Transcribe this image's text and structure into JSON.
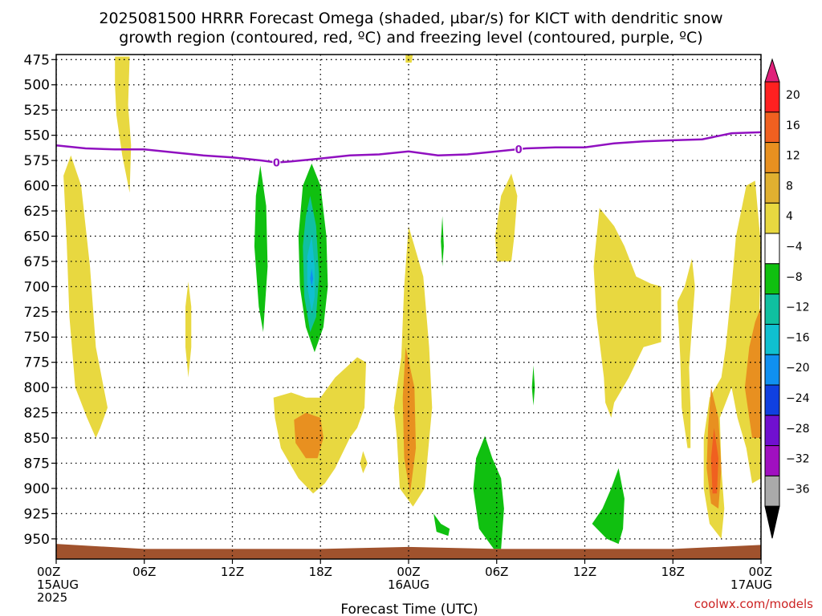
{
  "chart_data": {
    "type": "contour",
    "title": "2025081500 HRRR Forecast Omega (shaded, µbar/s) for KICT with dendritic snow",
    "subtitle": "growth region (contoured, red, ºC) and freezing level (contoured, purple, ºC)",
    "xlabel": "Forecast Time (UTC)",
    "ylabel": "",
    "x_range_hours": [
      0,
      48
    ],
    "y_range_hPa": [
      970,
      470
    ],
    "y_ticks": [
      475,
      500,
      525,
      550,
      575,
      600,
      625,
      650,
      675,
      700,
      725,
      750,
      775,
      800,
      825,
      850,
      875,
      900,
      925,
      950
    ],
    "x_ticks": [
      {
        "hour": 0,
        "line1": "00Z",
        "line2": "15AUG",
        "line3": "2025"
      },
      {
        "hour": 6,
        "line1": "06Z",
        "line2": "",
        "line3": ""
      },
      {
        "hour": 12,
        "line1": "12Z",
        "line2": "",
        "line3": ""
      },
      {
        "hour": 18,
        "line1": "18Z",
        "line2": "",
        "line3": ""
      },
      {
        "hour": 24,
        "line1": "00Z",
        "line2": "16AUG",
        "line3": ""
      },
      {
        "hour": 30,
        "line1": "06Z",
        "line2": "",
        "line3": ""
      },
      {
        "hour": 36,
        "line1": "12Z",
        "line2": "",
        "line3": ""
      },
      {
        "hour": 42,
        "line1": "18Z",
        "line2": "",
        "line3": ""
      },
      {
        "hour": 48,
        "line1": "00Z",
        "line2": "17AUG",
        "line3": ""
      }
    ],
    "grid": true,
    "colorbar": {
      "labels": [
        "20",
        "16",
        "12",
        "8",
        "4",
        "−4",
        "−8",
        "−12",
        "−16",
        "−20",
        "−24",
        "−28",
        "−32",
        "−36"
      ],
      "bands": [
        "#ff2020",
        "#f06020",
        "#e89020",
        "#e0b030",
        "#e8d840",
        "#ffffff",
        "#10c010",
        "#10c0a0",
        "#10c0d0",
        "#1090f0",
        "#1040e0",
        "#7010d0",
        "#a010c0",
        "#aaaaaa"
      ],
      "top_arrow_color": "#e0207a",
      "bottom_arrow_color": "#000000"
    },
    "freezing_level": {
      "color": "#9010c0",
      "label": "0",
      "label_hours": [
        15,
        31.5
      ],
      "hours": [
        0,
        2,
        4,
        6,
        8,
        10,
        12,
        14,
        15,
        16,
        18,
        20,
        22,
        24,
        26,
        28,
        30,
        32,
        34,
        36,
        38,
        40,
        42,
        44,
        46,
        48
      ],
      "pressure": [
        560,
        563,
        564,
        564,
        567,
        570,
        572,
        575,
        577,
        576,
        573,
        570,
        569,
        566,
        570,
        569,
        566,
        563,
        562,
        562,
        558,
        556,
        555,
        554,
        548,
        547
      ]
    },
    "ground_color": "#a0522d",
    "shaded_regions": [
      {
        "fill": "#e8d840",
        "pts": [
          [
            0.5,
            590
          ],
          [
            1,
            570
          ],
          [
            1.7,
            600
          ],
          [
            2.3,
            680
          ],
          [
            2.7,
            760
          ],
          [
            3.5,
            820
          ],
          [
            3,
            840
          ],
          [
            2.7,
            850
          ],
          [
            2.1,
            830
          ],
          [
            1.3,
            800
          ],
          [
            0.9,
            730
          ],
          [
            0.7,
            650
          ]
        ]
      },
      {
        "fill": "#e8d840",
        "pts": [
          [
            4,
            472
          ],
          [
            5,
            472
          ],
          [
            4.9,
            520
          ],
          [
            5.1,
            560
          ],
          [
            5,
            607
          ],
          [
            4.5,
            570
          ],
          [
            4.1,
            530
          ],
          [
            4,
            500
          ]
        ]
      },
      {
        "fill": "#e8d840",
        "pts": [
          [
            9,
            695
          ],
          [
            9.2,
            720
          ],
          [
            9.2,
            760
          ],
          [
            9,
            790
          ],
          [
            8.8,
            760
          ],
          [
            8.8,
            720
          ]
        ]
      },
      {
        "fill": "#10c010",
        "pts": [
          [
            13.9,
            580
          ],
          [
            14.3,
            620
          ],
          [
            14.4,
            680
          ],
          [
            14.1,
            745
          ],
          [
            13.8,
            720
          ],
          [
            13.5,
            660
          ],
          [
            13.6,
            610
          ]
        ]
      },
      {
        "fill": "#10c010",
        "pts": [
          [
            17.4,
            578
          ],
          [
            18,
            600
          ],
          [
            18.4,
            650
          ],
          [
            18.5,
            700
          ],
          [
            18.2,
            740
          ],
          [
            17.6,
            765
          ],
          [
            17,
            740
          ],
          [
            16.6,
            700
          ],
          [
            16.5,
            650
          ],
          [
            16.8,
            600
          ]
        ]
      },
      {
        "fill": "#10c0a0",
        "pts": [
          [
            17.3,
            610
          ],
          [
            17.7,
            640
          ],
          [
            17.9,
            690
          ],
          [
            17.7,
            730
          ],
          [
            17.3,
            745
          ],
          [
            16.9,
            710
          ],
          [
            16.8,
            660
          ],
          [
            17,
            630
          ]
        ]
      },
      {
        "fill": "#10c0d0",
        "pts": [
          [
            17.4,
            650
          ],
          [
            17.6,
            680
          ],
          [
            17.6,
            710
          ],
          [
            17.4,
            725
          ],
          [
            17.1,
            700
          ],
          [
            17.1,
            670
          ]
        ]
      },
      {
        "fill": "#1090f0",
        "pts": [
          [
            17.4,
            682
          ],
          [
            17.5,
            692
          ],
          [
            17.4,
            700
          ],
          [
            17.3,
            692
          ]
        ]
      },
      {
        "fill": "#e8d840",
        "pts": [
          [
            14.8,
            810
          ],
          [
            16,
            805
          ],
          [
            17,
            810
          ],
          [
            18,
            810
          ],
          [
            19,
            790
          ],
          [
            20.5,
            770
          ],
          [
            21.1,
            775
          ],
          [
            21,
            820
          ],
          [
            20.5,
            840
          ],
          [
            20,
            850
          ],
          [
            19,
            880
          ],
          [
            18.3,
            895
          ],
          [
            17.5,
            905
          ],
          [
            16.5,
            890
          ],
          [
            15.3,
            860
          ],
          [
            14.9,
            830
          ]
        ]
      },
      {
        "fill": "#e89020",
        "pts": [
          [
            16.2,
            832
          ],
          [
            17,
            825
          ],
          [
            18,
            830
          ],
          [
            18.2,
            850
          ],
          [
            17.8,
            870
          ],
          [
            17,
            870
          ],
          [
            16.3,
            855
          ]
        ]
      },
      {
        "fill": "#e8d840",
        "pts": [
          [
            20.9,
            863
          ],
          [
            21.2,
            875
          ],
          [
            20.9,
            885
          ],
          [
            20.7,
            875
          ]
        ]
      },
      {
        "fill": "#e8d840",
        "pts": [
          [
            24,
            640
          ],
          [
            25,
            690
          ],
          [
            25.4,
            760
          ],
          [
            25.6,
            820
          ],
          [
            25.1,
            900
          ],
          [
            24.3,
            918
          ],
          [
            23.4,
            900
          ],
          [
            23.2,
            850
          ],
          [
            23,
            820
          ],
          [
            23.5,
            770
          ],
          [
            23.7,
            700
          ]
        ]
      },
      {
        "fill": "#e89020",
        "pts": [
          [
            23.8,
            760
          ],
          [
            24.4,
            800
          ],
          [
            24.5,
            860
          ],
          [
            24.1,
            905
          ],
          [
            23.7,
            870
          ],
          [
            23.6,
            810
          ]
        ]
      },
      {
        "fill": "#e8d840",
        "pts": [
          [
            23.8,
            469
          ],
          [
            24.3,
            469
          ],
          [
            24.2,
            478
          ],
          [
            23.8,
            478
          ]
        ]
      },
      {
        "fill": "#10c010",
        "pts": [
          [
            26.3,
            630
          ],
          [
            26.4,
            660
          ],
          [
            26.3,
            680
          ],
          [
            26.2,
            655
          ]
        ]
      },
      {
        "fill": "#10c010",
        "pts": [
          [
            25.7,
            925
          ],
          [
            26.2,
            935
          ],
          [
            26.8,
            940
          ],
          [
            26.7,
            947
          ],
          [
            25.9,
            943
          ]
        ]
      },
      {
        "fill": "#10c010",
        "pts": [
          [
            29.2,
            848
          ],
          [
            29.7,
            870
          ],
          [
            30.3,
            890
          ],
          [
            30.5,
            920
          ],
          [
            30.3,
            960
          ],
          [
            29.8,
            960
          ],
          [
            28.8,
            940
          ],
          [
            28.4,
            900
          ],
          [
            28.6,
            870
          ]
        ]
      },
      {
        "fill": "#e8d840",
        "pts": [
          [
            31,
            588
          ],
          [
            31.4,
            610
          ],
          [
            31.2,
            650
          ],
          [
            31,
            675
          ],
          [
            30,
            675
          ],
          [
            29.9,
            650
          ],
          [
            30.3,
            610
          ]
        ]
      },
      {
        "fill": "#10c010",
        "pts": [
          [
            32.5,
            778
          ],
          [
            32.6,
            800
          ],
          [
            32.5,
            818
          ],
          [
            32.4,
            800
          ]
        ]
      },
      {
        "fill": "#e8d840",
        "pts": [
          [
            37,
            622
          ],
          [
            38,
            640
          ],
          [
            38.7,
            660
          ],
          [
            39.5,
            690
          ],
          [
            40.5,
            697
          ],
          [
            41.2,
            700
          ],
          [
            41.2,
            755
          ],
          [
            40,
            760
          ],
          [
            39,
            790
          ],
          [
            38,
            815
          ],
          [
            37.8,
            830
          ],
          [
            37.4,
            815
          ],
          [
            37.3,
            790
          ],
          [
            36.8,
            730
          ],
          [
            36.6,
            680
          ]
        ]
      },
      {
        "fill": "#10c010",
        "pts": [
          [
            38.3,
            880
          ],
          [
            38.7,
            910
          ],
          [
            38.6,
            940
          ],
          [
            38.3,
            955
          ],
          [
            37.5,
            950
          ],
          [
            36.5,
            935
          ],
          [
            37.2,
            920
          ],
          [
            37.8,
            900
          ]
        ]
      },
      {
        "fill": "#e8d840",
        "pts": [
          [
            43.3,
            672
          ],
          [
            43.5,
            700
          ],
          [
            43.3,
            740
          ],
          [
            43.1,
            780
          ],
          [
            43.2,
            820
          ],
          [
            43.2,
            860
          ],
          [
            43,
            860
          ],
          [
            42.6,
            820
          ],
          [
            42.5,
            770
          ],
          [
            42.4,
            740
          ],
          [
            42.3,
            715
          ],
          [
            42.8,
            700
          ]
        ]
      },
      {
        "fill": "#e8d840",
        "pts": [
          [
            47.6,
            595
          ],
          [
            48,
            660
          ],
          [
            47.9,
            720
          ],
          [
            48,
            800
          ],
          [
            48,
            890
          ],
          [
            47.4,
            895
          ],
          [
            47,
            860
          ],
          [
            46.4,
            830
          ],
          [
            46,
            800
          ],
          [
            45.2,
            830
          ],
          [
            45.3,
            880
          ],
          [
            45.5,
            920
          ],
          [
            45.3,
            950
          ],
          [
            44.5,
            935
          ],
          [
            44.1,
            900
          ],
          [
            44.1,
            850
          ],
          [
            44.5,
            810
          ],
          [
            45.3,
            790
          ],
          [
            45.6,
            760
          ],
          [
            46,
            700
          ],
          [
            46.3,
            650
          ],
          [
            47,
            600
          ]
        ]
      },
      {
        "fill": "#e89020",
        "pts": [
          [
            48,
            720
          ],
          [
            48,
            850
          ],
          [
            47.4,
            850
          ],
          [
            46.9,
            800
          ],
          [
            47.2,
            760
          ],
          [
            47.6,
            735
          ]
        ]
      },
      {
        "fill": "#e89020",
        "pts": [
          [
            44.6,
            800
          ],
          [
            45.1,
            830
          ],
          [
            45.3,
            880
          ],
          [
            45.1,
            920
          ],
          [
            44.6,
            915
          ],
          [
            44.3,
            880
          ],
          [
            44.4,
            840
          ]
        ]
      },
      {
        "fill": "#f06020",
        "pts": [
          [
            44.8,
            840
          ],
          [
            45.1,
            870
          ],
          [
            45,
            905
          ],
          [
            44.7,
            905
          ],
          [
            44.6,
            870
          ]
        ]
      }
    ]
  },
  "credit": "coolwx.com/models"
}
